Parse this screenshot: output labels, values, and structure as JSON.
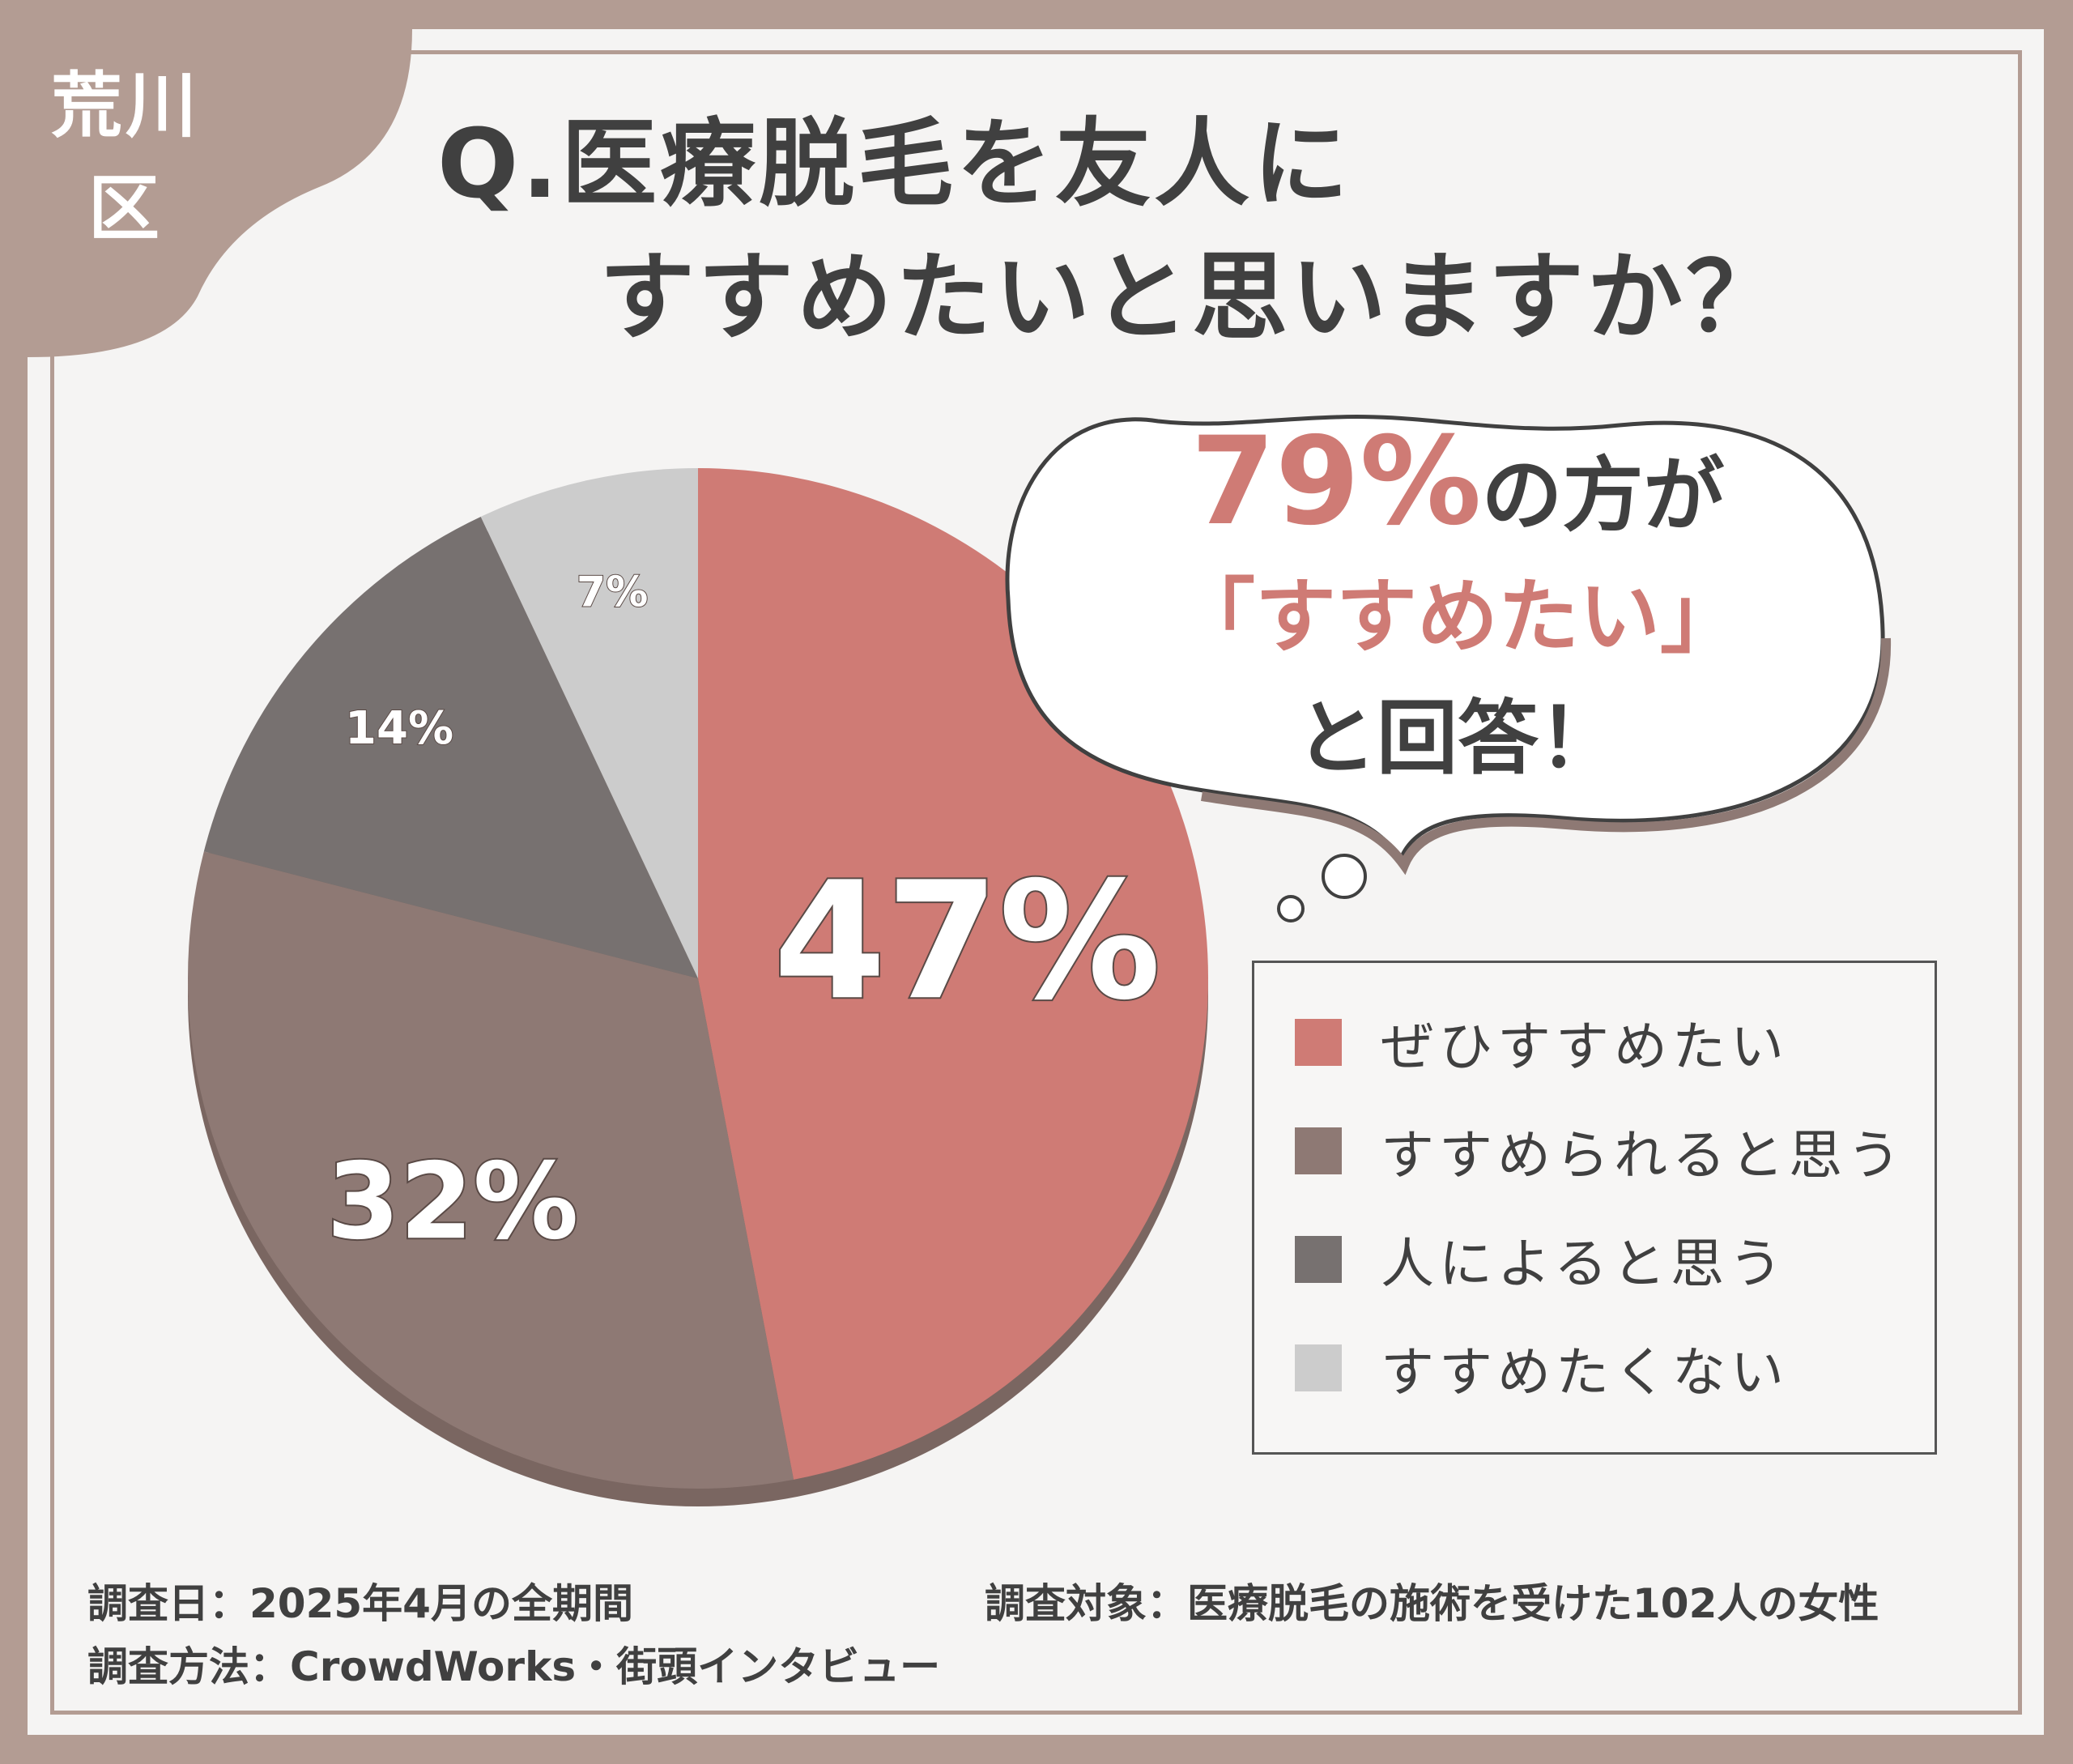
{
  "badge": {
    "area": "荒川区"
  },
  "title": {
    "line1": "Q.医療脱毛を友人に",
    "line2": "すすめたいと思いますか？"
  },
  "callout": {
    "percent": "79%",
    "line1_suffix": "の方が",
    "line2": "「すすめたい」",
    "line3": "と回答！"
  },
  "chart_data": {
    "type": "pie",
    "categories": [
      "ぜひすすめたい",
      "すすめられると思う",
      "人によると思う",
      "すすめたくない"
    ],
    "values": [
      47,
      32,
      14,
      7
    ],
    "value_labels": [
      "47%",
      "32%",
      "14%",
      "7%"
    ],
    "colors": [
      "#cf7b75",
      "#8e7974",
      "#777170",
      "#cccccc"
    ],
    "legend_position": "right"
  },
  "footer": {
    "date": "調査日：2025年4月の全期間",
    "target": "調査対象：医療脱毛の施術を受けた102人の女性",
    "method": "調査方法：CrowdWorks・街頭インタビュー"
  }
}
